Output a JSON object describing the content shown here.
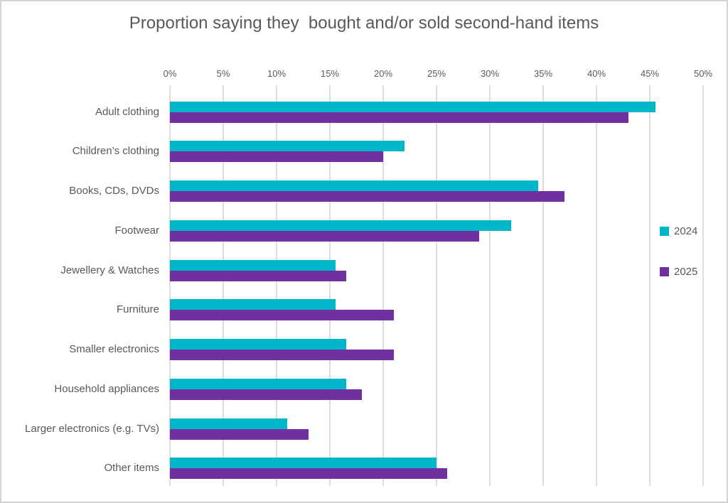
{
  "title": "Proportion saying they  bought and/or sold second-hand items",
  "colors": {
    "series_2024": "#00b6c9",
    "series_2025": "#7030a0",
    "text": "#595959",
    "gridline": "#dcdcdc",
    "frame_border": "#d4d4d4",
    "background": "#ffffff"
  },
  "legend": [
    {
      "label": "2024",
      "color": "#00b6c9"
    },
    {
      "label": "2025",
      "color": "#7030a0"
    }
  ],
  "chart_data": {
    "type": "bar",
    "orientation": "horizontal",
    "title": "Proportion saying they  bought and/or sold second-hand items",
    "xlabel": "",
    "ylabel": "",
    "xlim": [
      0,
      50
    ],
    "xticks": [
      0,
      5,
      10,
      15,
      20,
      25,
      30,
      35,
      40,
      45,
      50
    ],
    "xtick_suffix": "%",
    "grid": "vertical",
    "legend_position": "right",
    "categories": [
      "Adult clothing",
      "Children’s clothing",
      "Books, CDs, DVDs",
      "Footwear",
      "Jewellery & Watches",
      "Furniture",
      "Smaller electronics",
      "Household appliances",
      "Larger electronics (e.g. TVs)",
      "Other items"
    ],
    "series": [
      {
        "name": "2024",
        "color": "#00b6c9",
        "values": [
          45.5,
          22,
          34.5,
          32,
          15.5,
          15.5,
          16.5,
          16.5,
          11,
          25
        ]
      },
      {
        "name": "2025",
        "color": "#7030a0",
        "values": [
          43,
          20,
          37,
          29,
          16.5,
          21,
          21,
          18,
          13,
          26
        ]
      }
    ]
  }
}
